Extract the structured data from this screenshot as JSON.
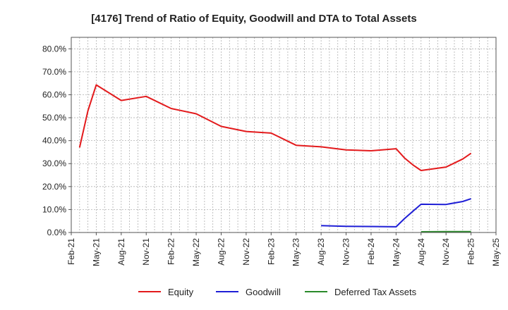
{
  "chart_data": {
    "type": "line",
    "title": "[4176]  Trend of Ratio of Equity, Goodwill and DTA to Total Assets",
    "xlabel": "",
    "ylabel": "",
    "ylim": [
      0,
      85
    ],
    "y_ticks": [
      0,
      10,
      20,
      30,
      40,
      50,
      60,
      70,
      80
    ],
    "y_tick_labels": [
      "0.0%",
      "10.0%",
      "20.0%",
      "30.0%",
      "40.0%",
      "50.0%",
      "60.0%",
      "70.0%",
      "80.0%"
    ],
    "x_ticks": [
      0,
      3,
      6,
      9,
      12,
      15,
      18,
      21,
      24,
      27,
      30,
      33,
      36,
      39,
      42,
      45,
      48,
      51
    ],
    "x_tick_labels": [
      "Feb-21",
      "May-21",
      "Aug-21",
      "Nov-21",
      "Feb-22",
      "May-22",
      "Aug-22",
      "Nov-22",
      "Feb-23",
      "May-23",
      "Aug-23",
      "Nov-23",
      "Feb-24",
      "May-24",
      "Aug-24",
      "Nov-24",
      "Feb-25",
      "May-25"
    ],
    "xlim": [
      0,
      51
    ],
    "grid": true,
    "legend_position": "bottom",
    "series": [
      {
        "name": "Equity",
        "color": "#e31a1c",
        "x": [
          1,
          2,
          3,
          6,
          9,
          12,
          15,
          18,
          21,
          24,
          27,
          30,
          33,
          36,
          39,
          40,
          41,
          42,
          45,
          47,
          48
        ],
        "values": [
          37.0,
          53.0,
          64.3,
          57.5,
          59.3,
          54.0,
          51.7,
          46.2,
          44.0,
          43.3,
          38.0,
          37.3,
          36.0,
          35.6,
          36.5,
          32.5,
          29.5,
          27.0,
          28.5,
          32.0,
          34.5
        ]
      },
      {
        "name": "Goodwill",
        "color": "#1f1fd6",
        "x": [
          30,
          33,
          36,
          39,
          40,
          41,
          42,
          45,
          47,
          48
        ],
        "values": [
          3.0,
          2.7,
          2.6,
          2.5,
          6.0,
          9.2,
          12.3,
          12.2,
          13.5,
          14.7
        ]
      },
      {
        "name": "Deferred Tax Assets",
        "color": "#2a8a2a",
        "x": [
          42,
          45,
          48
        ],
        "values": [
          0.3,
          0.4,
          0.4
        ]
      }
    ]
  }
}
